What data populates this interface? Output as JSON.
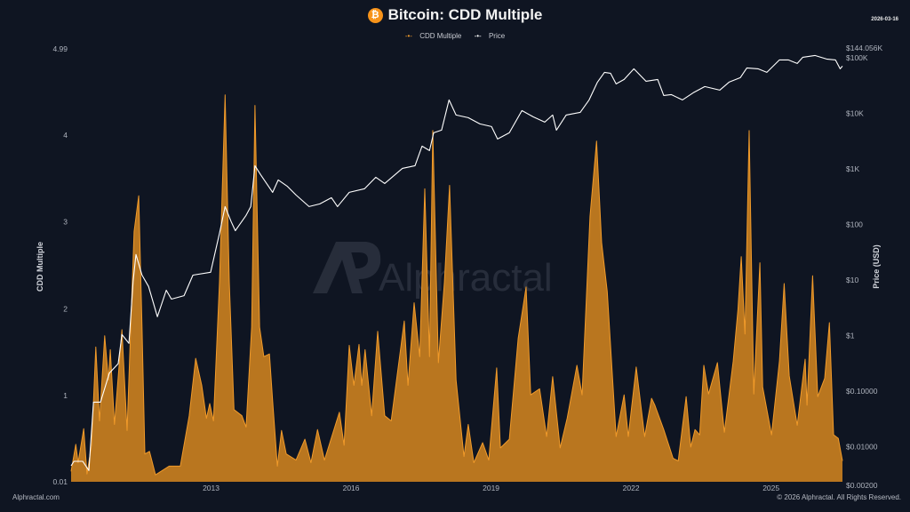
{
  "header": {
    "title": "Bitcoin: CDD Multiple",
    "coin_icon": "bitcoin-icon",
    "date": "2026-03-16",
    "legend": [
      "CDD Multiple",
      "Price"
    ]
  },
  "footer": {
    "left": "Alphractal.com",
    "right": "© 2026 Alphractal. All Rights Reserved."
  },
  "watermark": "Alphractal",
  "colors": {
    "background": "#0f1522",
    "cdd_fill": "#b9761f",
    "cdd_line": "#f09a2a",
    "price_line": "#ffffff",
    "bitcoin": "#f7931a"
  },
  "chart_data": {
    "type": "area",
    "xlabel": "",
    "ylabel_left": "CDD Multiple",
    "ylabel_right": "Price (USD)",
    "xlim": [
      2010.0,
      2026.53
    ],
    "ylim_left": [
      0.01,
      4.99
    ],
    "ylim_right": [
      0.002,
      144056
    ],
    "right_scale": "log",
    "grid": false,
    "legend_position": "top",
    "x_ticks": [
      2013,
      2016,
      2019,
      2022,
      2025
    ],
    "x_tick_labels": [
      "2013",
      "2016",
      "2019",
      "2022",
      "2025"
    ],
    "left_ticks": [
      4.99,
      4,
      3,
      2,
      1,
      0.01
    ],
    "left_tick_labels": [
      "4.99",
      "4",
      "3",
      "2",
      "1",
      "0.01"
    ],
    "right_ticks": [
      144056,
      100000,
      10000,
      1000,
      100,
      10,
      1,
      0.1,
      0.01,
      0.002
    ],
    "right_tick_labels": [
      "$144.056K",
      "$100K",
      "$10K",
      "$1K",
      "$100",
      "$10",
      "$1",
      "$0.10000",
      "$0.01000",
      "$0.00200"
    ],
    "series": [
      {
        "name": "CDD Multiple",
        "axis": "left",
        "style": "area",
        "x": [
          2010.0,
          2010.1,
          2010.15,
          2010.27,
          2010.34,
          2010.44,
          2010.53,
          2010.61,
          2010.72,
          2010.8,
          2010.84,
          2010.93,
          2011.09,
          2011.2,
          2011.35,
          2011.45,
          2011.52,
          2011.58,
          2011.68,
          2011.81,
          2012.1,
          2012.34,
          2012.53,
          2012.67,
          2012.8,
          2012.9,
          2012.97,
          2013.05,
          2013.18,
          2013.3,
          2013.39,
          2013.49,
          2013.66,
          2013.75,
          2013.87,
          2013.94,
          2014.04,
          2014.13,
          2014.25,
          2014.32,
          2014.42,
          2014.51,
          2014.61,
          2014.82,
          2015.01,
          2015.14,
          2015.28,
          2015.43,
          2015.75,
          2015.85,
          2015.96,
          2016.06,
          2016.17,
          2016.23,
          2016.3,
          2016.44,
          2016.57,
          2016.72,
          2016.86,
          2017.14,
          2017.22,
          2017.35,
          2017.47,
          2017.58,
          2017.68,
          2017.75,
          2017.87,
          2018.0,
          2018.11,
          2018.25,
          2018.42,
          2018.51,
          2018.63,
          2018.82,
          2018.95,
          2019.12,
          2019.2,
          2019.39,
          2019.58,
          2019.75,
          2019.85,
          2020.04,
          2020.19,
          2020.32,
          2020.48,
          2020.63,
          2020.84,
          2020.95,
          2021.12,
          2021.26,
          2021.37,
          2021.49,
          2021.68,
          2021.85,
          2021.94,
          2022.11,
          2022.29,
          2022.44,
          2022.51,
          2022.7,
          2022.9,
          2023.01,
          2023.18,
          2023.28,
          2023.37,
          2023.47,
          2023.56,
          2023.66,
          2023.85,
          2024.0,
          2024.19,
          2024.29,
          2024.36,
          2024.44,
          2024.53,
          2024.63,
          2024.76,
          2024.82,
          2025.01,
          2025.18,
          2025.28,
          2025.39,
          2025.56,
          2025.73,
          2025.77,
          2025.89,
          2026.0,
          2026.15,
          2026.25,
          2026.34,
          2026.44,
          2026.53
        ],
        "y": [
          0.13,
          0.44,
          0.23,
          0.62,
          0.1,
          0.44,
          1.56,
          0.71,
          1.69,
          1.18,
          1.53,
          0.67,
          1.76,
          0.6,
          2.89,
          3.3,
          1.79,
          0.33,
          0.36,
          0.09,
          0.19,
          0.19,
          0.77,
          1.43,
          1.12,
          0.74,
          0.91,
          0.71,
          2.31,
          4.46,
          2.31,
          0.84,
          0.77,
          0.64,
          1.79,
          4.34,
          1.79,
          1.45,
          1.48,
          0.94,
          0.19,
          0.6,
          0.33,
          0.26,
          0.5,
          0.23,
          0.61,
          0.26,
          0.81,
          0.43,
          1.58,
          1.12,
          1.59,
          1.12,
          1.53,
          0.77,
          1.74,
          0.77,
          0.71,
          1.86,
          1.12,
          2.07,
          1.45,
          3.38,
          1.45,
          4.05,
          1.38,
          2.31,
          3.42,
          1.18,
          0.3,
          0.67,
          0.23,
          0.46,
          0.26,
          1.32,
          0.4,
          0.5,
          1.66,
          2.25,
          1.01,
          1.08,
          0.53,
          1.22,
          0.4,
          0.74,
          1.35,
          1.01,
          3.06,
          3.93,
          2.76,
          2.2,
          0.53,
          1.01,
          0.53,
          1.33,
          0.53,
          0.97,
          0.89,
          0.61,
          0.28,
          0.25,
          0.99,
          0.41,
          0.61,
          0.55,
          1.35,
          1.02,
          1.38,
          0.58,
          1.4,
          1.99,
          2.6,
          1.71,
          4.05,
          1.02,
          2.53,
          1.1,
          0.55,
          1.4,
          2.29,
          1.23,
          0.66,
          1.42,
          0.89,
          2.38,
          0.99,
          1.2,
          1.84,
          0.55,
          0.51,
          0.25
        ]
      },
      {
        "name": "Price",
        "axis": "right",
        "style": "line",
        "x": [
          2010.0,
          2010.06,
          2010.25,
          2010.38,
          2010.48,
          2010.63,
          2010.82,
          2011.01,
          2011.09,
          2011.24,
          2011.33,
          2011.39,
          2011.52,
          2011.66,
          2011.85,
          2012.04,
          2012.15,
          2012.42,
          2012.61,
          2012.99,
          2013.18,
          2013.3,
          2013.43,
          2013.52,
          2013.75,
          2013.85,
          2013.94,
          2014.06,
          2014.19,
          2014.32,
          2014.44,
          2014.63,
          2014.82,
          2015.1,
          2015.33,
          2015.58,
          2015.71,
          2015.96,
          2016.29,
          2016.53,
          2016.72,
          2017.1,
          2017.37,
          2017.52,
          2017.68,
          2017.77,
          2017.94,
          2018.1,
          2018.25,
          2018.51,
          2018.76,
          2019.01,
          2019.14,
          2019.39,
          2019.66,
          2019.9,
          2020.15,
          2020.32,
          2020.4,
          2020.61,
          2020.91,
          2021.1,
          2021.28,
          2021.43,
          2021.56,
          2021.68,
          2021.85,
          2022.06,
          2022.32,
          2022.57,
          2022.7,
          2022.86,
          2023.1,
          2023.33,
          2023.58,
          2023.9,
          2024.1,
          2024.34,
          2024.48,
          2024.72,
          2024.91,
          2025.18,
          2025.37,
          2025.56,
          2025.68,
          2025.94,
          2026.19,
          2026.38,
          2026.48,
          2026.53
        ],
        "y": [
          0.0045,
          0.0054,
          0.0054,
          0.0037,
          0.063,
          0.063,
          0.21,
          0.31,
          1.04,
          0.72,
          9.5,
          28.6,
          12.2,
          7.6,
          2.17,
          6.5,
          4.5,
          5.2,
          12.2,
          13.7,
          69,
          209,
          112,
          77,
          145,
          209,
          1138,
          787,
          545,
          377,
          631,
          488,
          337,
          209,
          233,
          302,
          209,
          377,
          437,
          705,
          545,
          1019,
          1138,
          2559,
          2128,
          4446,
          4966,
          17378,
          9290,
          8318,
          6427,
          5754,
          3436,
          4446,
          11169,
          8630,
          6918,
          9290,
          4966,
          9290,
          10375,
          17378,
          36308,
          54450,
          52481,
          33729,
          40551,
          63096,
          37670,
          40551,
          20893,
          21677,
          17378,
          23335,
          30200,
          26062,
          36308,
          43652,
          65464,
          63096,
          54450,
          91201,
          91201,
          78705,
          101859,
          109648,
          94624,
          91201,
          63096,
          70469
        ]
      }
    ]
  }
}
